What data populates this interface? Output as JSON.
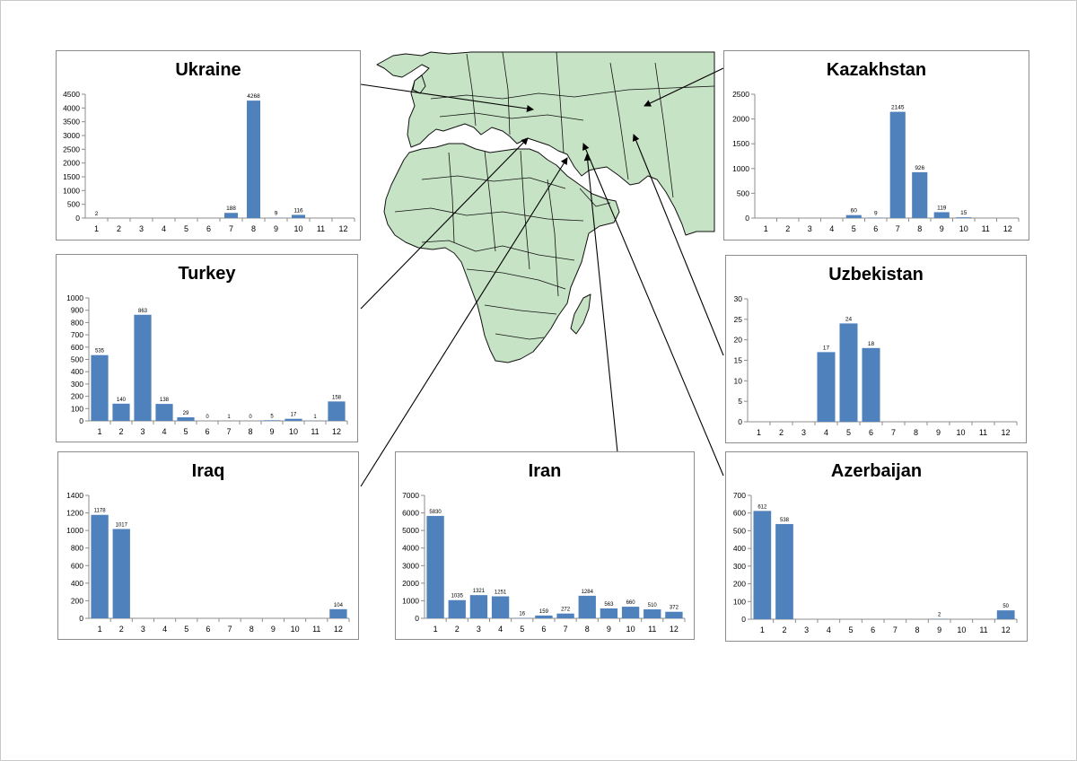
{
  "colors": {
    "bar": "#4f81bd",
    "land": "#c7e3c5",
    "border": "#111111",
    "axis": "#8c8c8c",
    "connector": "#000000"
  },
  "map": {
    "icon": "africa-eurasia-map"
  },
  "chart_data": [
    {
      "id": "ukraine",
      "type": "bar",
      "title": "Ukraine",
      "categories": [
        "1",
        "2",
        "3",
        "4",
        "5",
        "6",
        "7",
        "8",
        "9",
        "10",
        "11",
        "12"
      ],
      "values": [
        2,
        0,
        0,
        0,
        0,
        0,
        188,
        4268,
        9,
        116,
        0,
        0
      ],
      "labels": [
        "2",
        "",
        "",
        "",
        "",
        "",
        "188",
        "4268",
        "9",
        "116",
        "",
        ""
      ],
      "ylim": [
        0,
        4500
      ],
      "yticks": [
        "0",
        "500",
        "1000",
        "1500",
        "2000",
        "2500",
        "3000",
        "3500",
        "4000",
        "4500"
      ],
      "grid": false
    },
    {
      "id": "kazakhstan",
      "type": "bar",
      "title": "Kazakhstan",
      "categories": [
        "1",
        "2",
        "3",
        "4",
        "5",
        "6",
        "7",
        "8",
        "9",
        "10",
        "11",
        "12"
      ],
      "values": [
        0,
        0,
        0,
        0,
        60,
        9,
        2145,
        926,
        119,
        15,
        0,
        0
      ],
      "labels": [
        "",
        "",
        "",
        "",
        "60",
        "9",
        "2145",
        "926",
        "119",
        "15",
        "",
        ""
      ],
      "ylim": [
        0,
        2500
      ],
      "yticks": [
        "0",
        "500",
        "1000",
        "1500",
        "2000",
        "2500"
      ],
      "grid": false
    },
    {
      "id": "turkey",
      "type": "bar",
      "title": "Turkey",
      "categories": [
        "1",
        "2",
        "3",
        "4",
        "5",
        "6",
        "7",
        "8",
        "9",
        "10",
        "11",
        "12"
      ],
      "values": [
        535,
        140,
        863,
        138,
        29,
        0,
        1,
        0,
        5,
        17,
        1,
        158
      ],
      "labels": [
        "535",
        "140",
        "863",
        "138",
        "29",
        "0",
        "1",
        "0",
        "5",
        "17",
        "1",
        "158"
      ],
      "ylim": [
        0,
        1000
      ],
      "yticks": [
        "0",
        "100",
        "200",
        "300",
        "400",
        "500",
        "600",
        "700",
        "800",
        "900",
        "1000"
      ],
      "grid": false
    },
    {
      "id": "uzbekistan",
      "type": "bar",
      "title": "Uzbekistan",
      "categories": [
        "1",
        "2",
        "3",
        "4",
        "5",
        "6",
        "7",
        "8",
        "9",
        "10",
        "11",
        "12"
      ],
      "values": [
        0,
        0,
        0,
        17,
        24,
        18,
        0,
        0,
        0,
        0,
        0,
        0
      ],
      "labels": [
        "",
        "",
        "",
        "17",
        "24",
        "18",
        "",
        "",
        "",
        "",
        "",
        ""
      ],
      "ylim": [
        0,
        30
      ],
      "yticks": [
        "0",
        "5",
        "10",
        "15",
        "20",
        "25",
        "30"
      ],
      "grid": false
    },
    {
      "id": "iraq",
      "type": "bar",
      "title": "Iraq",
      "categories": [
        "1",
        "2",
        "3",
        "4",
        "5",
        "6",
        "7",
        "8",
        "9",
        "10",
        "11",
        "12"
      ],
      "values": [
        1178,
        1017,
        0,
        0,
        0,
        0,
        0,
        0,
        0,
        0,
        0,
        104
      ],
      "labels": [
        "1178",
        "1017",
        "",
        "",
        "",
        "",
        "",
        "",
        "",
        "",
        "",
        "104"
      ],
      "ylim": [
        0,
        1400
      ],
      "yticks": [
        "0",
        "200",
        "400",
        "600",
        "800",
        "1000",
        "1200",
        "1400"
      ],
      "grid": false
    },
    {
      "id": "iran",
      "type": "bar",
      "title": "Iran",
      "categories": [
        "1",
        "2",
        "3",
        "4",
        "5",
        "6",
        "7",
        "8",
        "9",
        "10",
        "11",
        "12"
      ],
      "values": [
        5830,
        1035,
        1321,
        1251,
        16,
        159,
        272,
        1284,
        563,
        660,
        510,
        372
      ],
      "labels": [
        "5830",
        "1035",
        "1321",
        "1251",
        "16",
        "159",
        "272",
        "1284",
        "563",
        "660",
        "510",
        "372"
      ],
      "ylim": [
        0,
        7000
      ],
      "yticks": [
        "0",
        "1000",
        "2000",
        "3000",
        "4000",
        "5000",
        "6000",
        "7000"
      ],
      "grid": false
    },
    {
      "id": "azerbaijan",
      "type": "bar",
      "title": "Azerbaijan",
      "categories": [
        "1",
        "2",
        "3",
        "4",
        "5",
        "6",
        "7",
        "8",
        "9",
        "10",
        "11",
        "12"
      ],
      "values": [
        612,
        538,
        0,
        0,
        0,
        0,
        0,
        0,
        2,
        0,
        0,
        50
      ],
      "labels": [
        "612",
        "538",
        "",
        "",
        "",
        "",
        "",
        "",
        "2",
        "",
        "",
        "50"
      ],
      "ylim": [
        0,
        700
      ],
      "yticks": [
        "0",
        "100",
        "200",
        "300",
        "400",
        "500",
        "600",
        "700"
      ],
      "grid": false
    }
  ]
}
